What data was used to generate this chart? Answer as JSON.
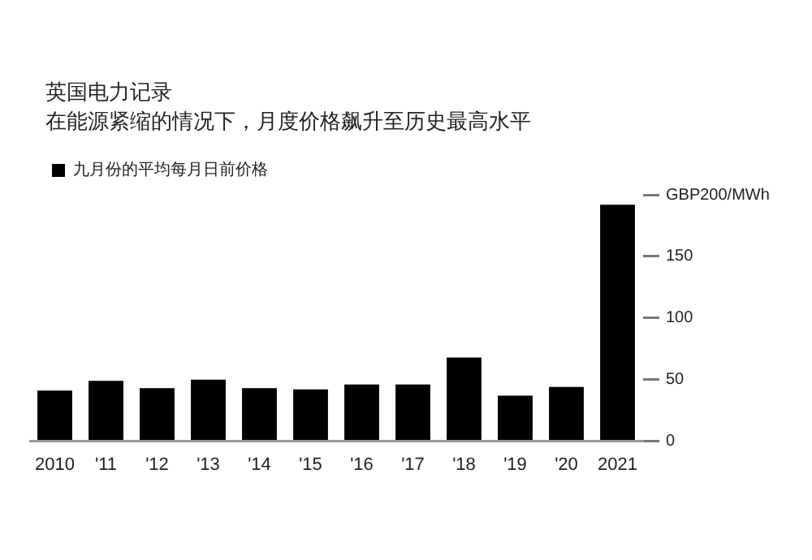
{
  "chart_data": {
    "type": "bar",
    "title": "英国电力记录",
    "subtitle": "在能源紧缩的情况下，月度价格飙升至历史最高水平",
    "categories": [
      "2010",
      "'11",
      "'12",
      "'13",
      "'14",
      "'15",
      "'16",
      "'17",
      "'18",
      "'19",
      "'20",
      "2021"
    ],
    "series": [
      {
        "name": "九月份的平均每月日前价格",
        "color": "#000000",
        "values": [
          41,
          49,
          43,
          50,
          43,
          42,
          46,
          46,
          68,
          37,
          44,
          192
        ]
      }
    ],
    "ylim": [
      0,
      200
    ],
    "yticks": [
      0,
      50,
      100,
      150,
      {
        "value": 200,
        "label": "GBP200/MWh"
      }
    ],
    "grid": false,
    "legend": "top left"
  }
}
